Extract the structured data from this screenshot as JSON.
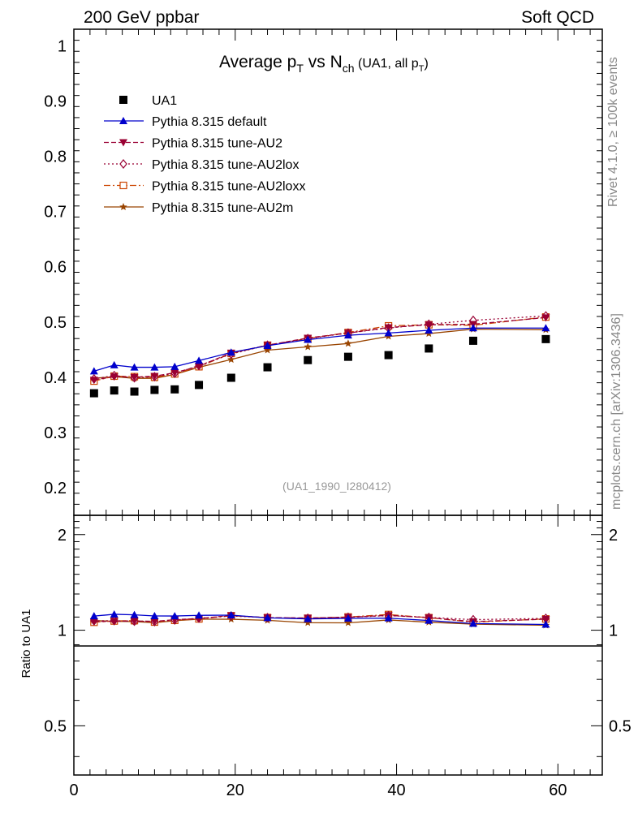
{
  "header": {
    "left": "200 GeV ppbar",
    "right": "Soft QCD",
    "side_top": "Rivet 4.1.0, ≥ 100k events",
    "side_bottom": "mcplots.cern.ch [arXiv:1306.3436]"
  },
  "chart_data": {
    "type": "line",
    "title": "Average p_T vs N_ch (UA1, all p_T)",
    "title_parts": {
      "a": "Average p",
      "a_sub": "T",
      "b": " vs N",
      "b_sub": "ch",
      "c": " (UA1, all p",
      "c_sub": "T",
      "d": ")"
    },
    "annotation": "(UA1_1990_I280412)",
    "xlabel": "",
    "ylabel_ratio": "Ratio to UA1",
    "xlim": [
      0,
      65.5
    ],
    "ylim": [
      0.15,
      1.03
    ],
    "ratio_ylim": [
      0.35,
      2.3
    ],
    "x_ticks": [
      "0",
      "20",
      "40",
      "60"
    ],
    "y_ticks": [
      "0.2",
      "0.3",
      "0.4",
      "0.5",
      "0.6",
      "0.7",
      "0.8",
      "0.9",
      "1"
    ],
    "ratio_ticks": [
      "0.5",
      "1",
      "2"
    ],
    "x": [
      2.5,
      5,
      7.5,
      10,
      12.5,
      15.5,
      19.5,
      24,
      29,
      34,
      39,
      44,
      49.5,
      58.5
    ],
    "data": {
      "name": "UA1",
      "values": [
        0.371,
        0.376,
        0.374,
        0.377,
        0.378,
        0.386,
        0.399,
        0.418,
        0.431,
        0.437,
        0.44,
        0.452,
        0.466,
        0.469
      ]
    },
    "series": [
      {
        "name": "Pythia 8.315 default",
        "color": "#0000cc",
        "dash": "",
        "marker": "triangle-up",
        "values": [
          0.411,
          0.422,
          0.418,
          0.418,
          0.419,
          0.43,
          0.445,
          0.457,
          0.468,
          0.476,
          0.48,
          0.485,
          0.489,
          0.489
        ]
      },
      {
        "name": "Pythia 8.315 tune-AU2",
        "color": "#990033",
        "dash": "6,3",
        "marker": "triangle-down",
        "values": [
          0.395,
          0.401,
          0.4,
          0.402,
          0.408,
          0.42,
          0.444,
          0.458,
          0.471,
          0.48,
          0.49,
          0.495,
          0.496,
          0.508
        ]
      },
      {
        "name": "Pythia 8.315 tune-AU2lox",
        "color": "#990033",
        "dash": "2,3",
        "marker": "diamond-open",
        "values": [
          0.397,
          0.403,
          0.399,
          0.401,
          0.407,
          0.421,
          0.442,
          0.458,
          0.47,
          0.48,
          0.489,
          0.496,
          0.503,
          0.511
        ]
      },
      {
        "name": "Pythia 8.315 tune-AU2loxx",
        "color": "#cc4400",
        "dash": "8,3,2,3",
        "marker": "square-open",
        "values": [
          0.393,
          0.402,
          0.401,
          0.4,
          0.406,
          0.419,
          0.443,
          0.458,
          0.47,
          0.481,
          0.493,
          0.495,
          0.494,
          0.509
        ]
      },
      {
        "name": "Pythia 8.315 tune-AU2m",
        "color": "#994400",
        "dash": "",
        "marker": "star",
        "values": [
          0.398,
          0.401,
          0.398,
          0.398,
          0.405,
          0.418,
          0.432,
          0.449,
          0.455,
          0.461,
          0.474,
          0.479,
          0.487,
          0.486
        ]
      }
    ]
  }
}
